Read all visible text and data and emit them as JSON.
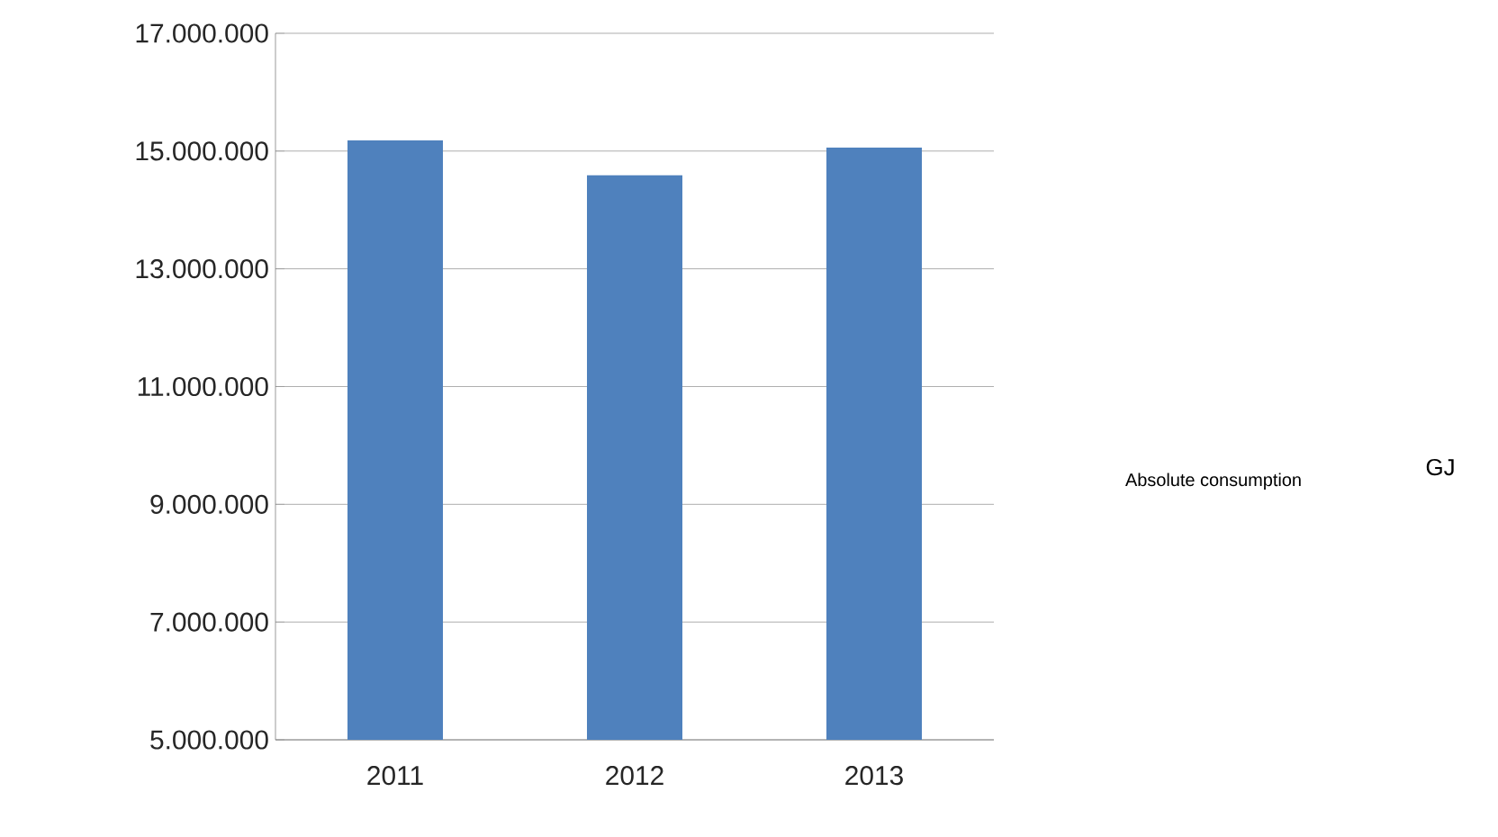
{
  "chart_data": {
    "type": "bar",
    "categories": [
      "2011",
      "2012",
      "2013"
    ],
    "values": [
      15180000,
      14590000,
      15060000
    ],
    "color": "#4f81bd",
    "ylim": [
      5000000,
      17000000
    ],
    "yticks": [
      {
        "value": 5000000,
        "label": "5.000.000"
      },
      {
        "value": 7000000,
        "label": "7.000.000"
      },
      {
        "value": 9000000,
        "label": "9.000.000"
      },
      {
        "value": 11000000,
        "label": "11.000.000"
      },
      {
        "value": 13000000,
        "label": "13.000.000"
      },
      {
        "value": 15000000,
        "label": "15.000.000"
      },
      {
        "value": 17000000,
        "label": "17.000.000"
      }
    ],
    "grid": "y",
    "annotations": [
      "Absolute consumption",
      "GJ"
    ]
  }
}
